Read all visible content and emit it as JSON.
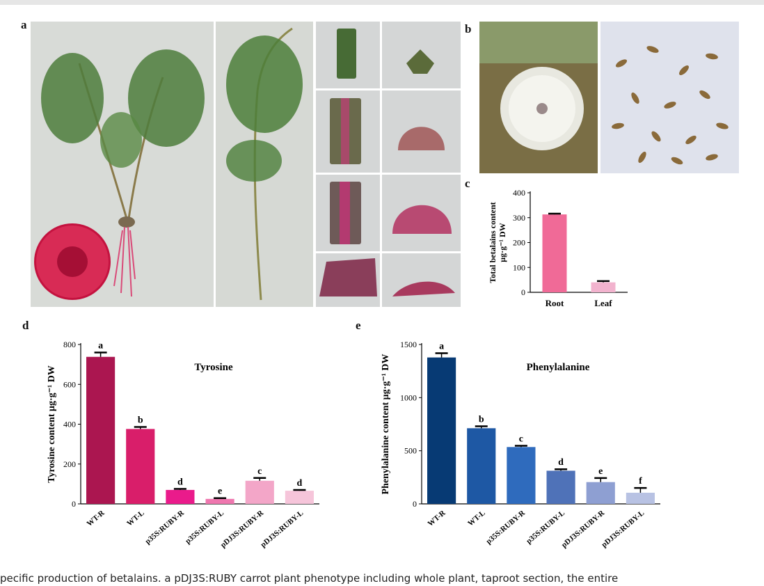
{
  "panels": {
    "a": "a",
    "b": "b",
    "c": "c",
    "d": "d",
    "e": "e"
  },
  "caption": "pecific production of betalains. a pDJ3S:RUBY carrot plant phenotype including whole plant, taproot section, the entire",
  "chart_data": [
    {
      "panel": "c",
      "type": "bar",
      "categories": [
        "Root",
        "Leaf"
      ],
      "values": [
        313,
        40
      ],
      "errors": [
        3,
        5
      ],
      "colors": [
        "#f06a97",
        "#f2b3ce"
      ],
      "ylabel_line1": "Total betalains content",
      "ylabel_line2": "μg·g⁻¹ DW",
      "yticks": [
        "0",
        "100",
        "200",
        "300",
        "400"
      ],
      "ylim": [
        0,
        400
      ]
    },
    {
      "panel": "d",
      "type": "bar",
      "title": "Tyrosine",
      "categories": [
        "WT-R",
        "WT-L",
        "p35S:RUBY-R",
        "p35S:RUBY-L",
        "pDJ3S:RUBY-R",
        "pDJ3S:RUBY-L"
      ],
      "values": [
        738,
        376,
        70,
        25,
        116,
        66
      ],
      "errors": [
        22,
        10,
        5,
        4,
        14,
        4
      ],
      "letters": [
        "a",
        "b",
        "d",
        "e",
        "c",
        "d"
      ],
      "colors": [
        "#ab1650",
        "#d91e6a",
        "#ea1b8b",
        "#ef77af",
        "#f3a6c8",
        "#f6c5da"
      ],
      "ylabel": "Tyrosine content  μg·g⁻¹ DW",
      "yticks": [
        "0",
        "200",
        "400",
        "600",
        "800"
      ],
      "ylim": [
        0,
        800
      ]
    },
    {
      "panel": "e",
      "type": "bar",
      "title": "Phenylalanine",
      "categories": [
        "WT-R",
        "WT-L",
        "p35S:RUBY-R",
        "p35S:RUBY-L",
        "pDJ3S:RUBY-R",
        "pDJ3S:RUBY-L"
      ],
      "values": [
        1378,
        712,
        535,
        312,
        205,
        105
      ],
      "errors": [
        40,
        18,
        12,
        14,
        38,
        45
      ],
      "letters": [
        "a",
        "b",
        "c",
        "d",
        "e",
        "f"
      ],
      "colors": [
        "#073a74",
        "#1e58a4",
        "#2f6bbd",
        "#4f72b8",
        "#8e9fd2",
        "#b8c2e3"
      ],
      "ylabel": "Phenylalanine  content  μg·g⁻¹ DW",
      "yticks": [
        "0",
        "500",
        "1000",
        "1500"
      ],
      "ylim": [
        0,
        1500
      ]
    }
  ]
}
